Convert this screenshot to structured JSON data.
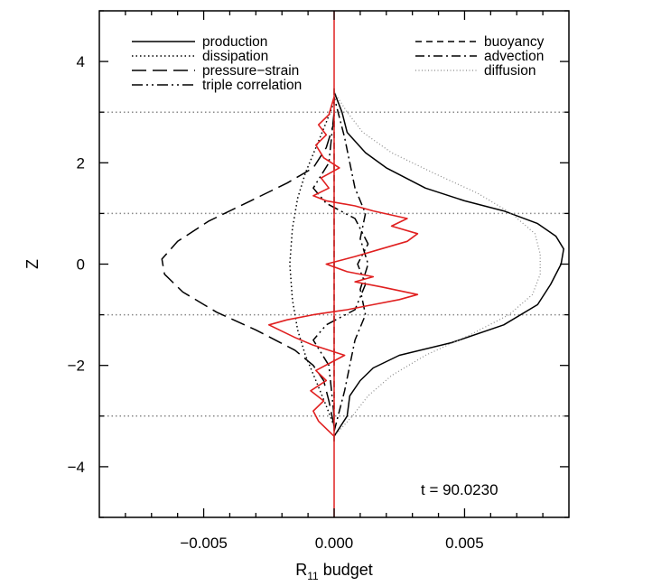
{
  "chart_data": {
    "type": "line",
    "title": "",
    "xlabel": "R",
    "xlabel_subscript": "11",
    "xlabel_suffix": " budget",
    "ylabel": "Z",
    "xlim": [
      -0.009,
      0.009
    ],
    "ylim": [
      -5,
      5
    ],
    "xticks": [
      -0.005,
      0.0,
      0.005
    ],
    "xtick_labels": [
      "−0.005",
      "0.000",
      "0.005"
    ],
    "yticks": [
      -4,
      -2,
      0,
      2,
      4
    ],
    "ytick_labels": [
      "−4",
      "−2",
      "0",
      "2",
      "4"
    ],
    "horizontal_reference_lines": [
      -3,
      -1,
      1,
      3
    ],
    "annotation": "t  =  90.0230",
    "legend": {
      "placement": "top",
      "left_entries": [
        "production",
        "dissipation",
        "pressure−strain",
        "triple correlation"
      ],
      "right_entries": [
        "buoyancy",
        "advection",
        "diffusion"
      ]
    },
    "series": [
      {
        "name": "production",
        "style": "solid",
        "color": "#000000",
        "points": [
          [
            0.0,
            -3.4
          ],
          [
            0.0005,
            -3.0
          ],
          [
            0.0006,
            -2.6
          ],
          [
            0.001,
            -2.3
          ],
          [
            0.0015,
            -2.05
          ],
          [
            0.0025,
            -1.8
          ],
          [
            0.0045,
            -1.55
          ],
          [
            0.0065,
            -1.2
          ],
          [
            0.0078,
            -0.8
          ],
          [
            0.0083,
            -0.4
          ],
          [
            0.0087,
            0.0
          ],
          [
            0.0088,
            0.3
          ],
          [
            0.0085,
            0.55
          ],
          [
            0.0078,
            0.8
          ],
          [
            0.0065,
            1.05
          ],
          [
            0.005,
            1.25
          ],
          [
            0.0035,
            1.5
          ],
          [
            0.002,
            1.9
          ],
          [
            0.0012,
            2.2
          ],
          [
            0.0005,
            2.6
          ],
          [
            0.0003,
            3.0
          ],
          [
            0.0,
            3.4
          ]
        ]
      },
      {
        "name": "dissipation",
        "style": "dotted",
        "color": "#000000",
        "points": [
          [
            0.0,
            -3.2
          ],
          [
            -0.0003,
            -2.8
          ],
          [
            -0.0007,
            -2.3
          ],
          [
            -0.0011,
            -1.8
          ],
          [
            -0.0014,
            -1.3
          ],
          [
            -0.0016,
            -0.7
          ],
          [
            -0.0017,
            0.0
          ],
          [
            -0.0016,
            0.7
          ],
          [
            -0.0014,
            1.3
          ],
          [
            -0.0011,
            1.8
          ],
          [
            -0.0007,
            2.3
          ],
          [
            -0.0003,
            2.8
          ],
          [
            0.0,
            3.2
          ]
        ]
      },
      {
        "name": "pressure−strain",
        "style": "long-dash",
        "color": "#000000",
        "points": [
          [
            0.0,
            -3.2
          ],
          [
            -0.0002,
            -2.7
          ],
          [
            -0.0004,
            -2.3
          ],
          [
            -0.0008,
            -2.0
          ],
          [
            -0.0015,
            -1.7
          ],
          [
            -0.003,
            -1.3
          ],
          [
            -0.0045,
            -0.95
          ],
          [
            -0.0058,
            -0.55
          ],
          [
            -0.0065,
            -0.2
          ],
          [
            -0.0066,
            0.1
          ],
          [
            -0.006,
            0.45
          ],
          [
            -0.0048,
            0.85
          ],
          [
            -0.0032,
            1.25
          ],
          [
            -0.0018,
            1.6
          ],
          [
            -0.0008,
            1.9
          ],
          [
            -0.0003,
            2.3
          ],
          [
            0.0,
            2.8
          ]
        ]
      },
      {
        "name": "triple correlation",
        "style": "dash-dot-dot",
        "color": "#000000",
        "points": [
          [
            0.0,
            -3.0
          ],
          [
            -0.0002,
            -2.0
          ],
          [
            -0.0008,
            -1.5
          ],
          [
            -0.0003,
            -1.2
          ],
          [
            0.0008,
            -0.9
          ],
          [
            0.0012,
            -0.4
          ],
          [
            0.0009,
            0.0
          ],
          [
            0.0013,
            0.4
          ],
          [
            0.0008,
            0.9
          ],
          [
            -0.0003,
            1.2
          ],
          [
            -0.0008,
            1.5
          ],
          [
            -0.0002,
            2.0
          ],
          [
            0.0,
            3.0
          ]
        ]
      },
      {
        "name": "buoyancy",
        "style": "short-dash",
        "color": "#000000",
        "points": [
          [
            0.0,
            -3.5
          ],
          [
            0.0,
            3.5
          ]
        ]
      },
      {
        "name": "advection",
        "style": "dash-dot",
        "color": "#000000",
        "points": [
          [
            0.0,
            -3.3
          ],
          [
            0.0004,
            -2.5
          ],
          [
            0.0008,
            -1.5
          ],
          [
            0.0012,
            -1.0
          ],
          [
            0.001,
            -0.5
          ],
          [
            0.0013,
            0.0
          ],
          [
            0.001,
            0.5
          ],
          [
            0.0012,
            1.0
          ],
          [
            0.0008,
            1.5
          ],
          [
            0.0004,
            2.5
          ],
          [
            0.0,
            3.3
          ]
        ]
      },
      {
        "name": "diffusion",
        "style": "thin-dotted",
        "color": "#888888",
        "points": [
          [
            0.0,
            -3.4
          ],
          [
            0.0007,
            -3.0
          ],
          [
            0.0013,
            -2.6
          ],
          [
            0.0022,
            -2.2
          ],
          [
            0.0035,
            -1.8
          ],
          [
            0.0052,
            -1.4
          ],
          [
            0.0067,
            -1.0
          ],
          [
            0.0076,
            -0.6
          ],
          [
            0.0079,
            -0.2
          ],
          [
            0.0079,
            0.2
          ],
          [
            0.0077,
            0.6
          ],
          [
            0.0068,
            1.0
          ],
          [
            0.0055,
            1.4
          ],
          [
            0.0038,
            1.8
          ],
          [
            0.0022,
            2.2
          ],
          [
            0.0011,
            2.6
          ],
          [
            0.0005,
            3.0
          ],
          [
            0.0,
            3.4
          ]
        ]
      },
      {
        "name": "",
        "style": "solid",
        "color": "#e02020",
        "points": [
          [
            0.0,
            -3.4
          ],
          [
            -0.0006,
            -3.1
          ],
          [
            -0.0008,
            -2.9
          ],
          [
            -0.0004,
            -2.7
          ],
          [
            -0.0009,
            -2.5
          ],
          [
            -0.0003,
            -2.3
          ],
          [
            -0.0007,
            -2.1
          ],
          [
            0.0004,
            -1.8
          ],
          [
            -0.0008,
            -1.6
          ],
          [
            -0.0015,
            -1.45
          ],
          [
            -0.0025,
            -1.2
          ],
          [
            -0.0018,
            -1.1
          ],
          [
            -0.0008,
            -1.0
          ],
          [
            0.0005,
            -0.9
          ],
          [
            0.0015,
            -0.8
          ],
          [
            0.0025,
            -0.7
          ],
          [
            0.0032,
            -0.6
          ],
          [
            0.0018,
            -0.45
          ],
          [
            0.0008,
            -0.35
          ],
          [
            0.0015,
            -0.25
          ],
          [
            0.0005,
            -0.15
          ],
          [
            -0.0003,
            0.0
          ],
          [
            0.0008,
            0.15
          ],
          [
            0.0018,
            0.3
          ],
          [
            0.0028,
            0.45
          ],
          [
            0.0032,
            0.6
          ],
          [
            0.0022,
            0.75
          ],
          [
            0.0028,
            0.9
          ],
          [
            0.0015,
            1.05
          ],
          [
            0.0008,
            1.15
          ],
          [
            -0.0003,
            1.25
          ],
          [
            -0.0008,
            1.35
          ],
          [
            -0.0002,
            1.5
          ],
          [
            -0.0005,
            1.7
          ],
          [
            0.0002,
            1.9
          ],
          [
            -0.0004,
            2.1
          ],
          [
            -0.0007,
            2.35
          ],
          [
            -0.0003,
            2.55
          ],
          [
            -0.0006,
            2.75
          ],
          [
            -0.0002,
            2.95
          ],
          [
            0.0,
            3.3
          ]
        ]
      }
    ]
  }
}
